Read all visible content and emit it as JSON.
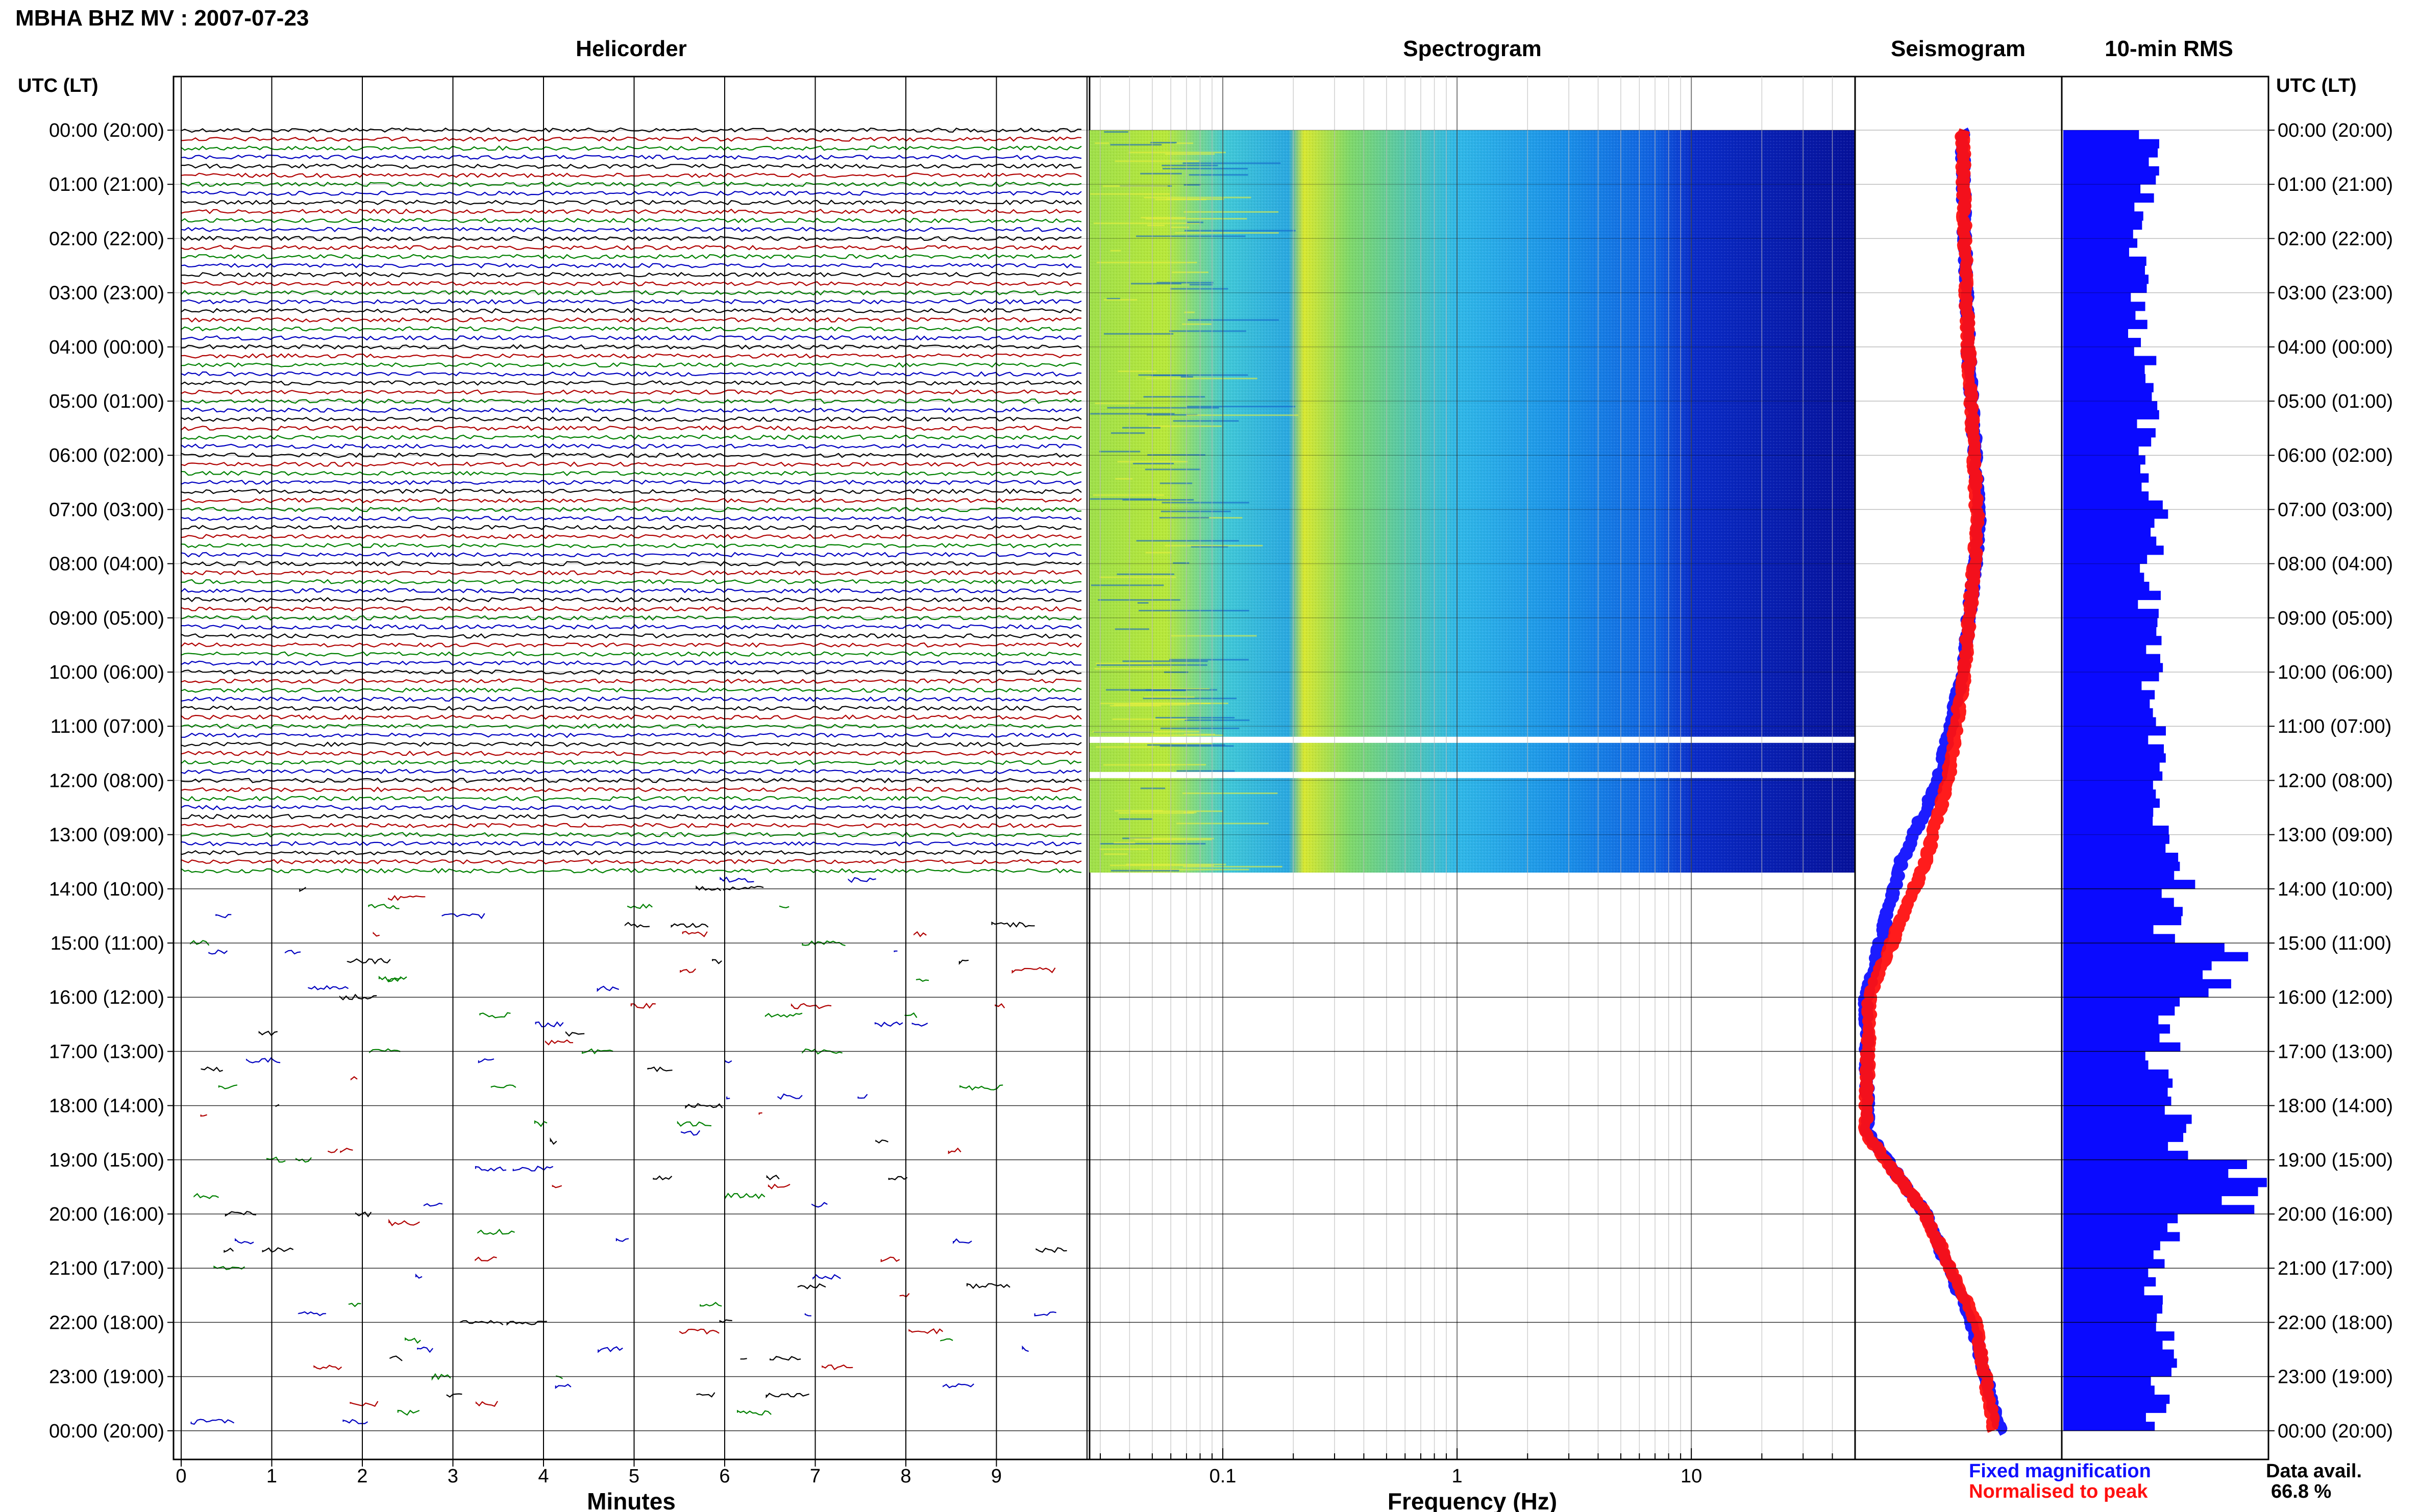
{
  "header": {
    "station_title": "MBHA BHZ MV : 2007-07-23"
  },
  "panels": {
    "helicorder": "Helicorder",
    "spectrogram": "Spectrogram",
    "seismogram": "Seismogram",
    "rms": "10-min RMS"
  },
  "axis": {
    "left_time_label": "UTC (LT)",
    "right_time_label": "UTC (LT)",
    "minutes_label": "Minutes",
    "frequency_label": "Frequency (Hz)"
  },
  "legend": {
    "fixed": "Fixed magnification",
    "normalised": "Normalised to peak",
    "fixed_color": "#1010ff",
    "normalised_color": "#ff1010"
  },
  "data_avail": {
    "label": "Data avail.",
    "value": "66.8 %"
  },
  "chart_data": {
    "type": "heatmap",
    "time_ticks": [
      "00:00 (20:00)",
      "01:00 (21:00)",
      "02:00 (22:00)",
      "03:00 (23:00)",
      "04:00 (00:00)",
      "05:00 (01:00)",
      "06:00 (02:00)",
      "07:00 (03:00)",
      "08:00 (04:00)",
      "09:00 (05:00)",
      "10:00 (06:00)",
      "11:00 (07:00)",
      "12:00 (08:00)",
      "13:00 (09:00)",
      "14:00 (10:00)",
      "15:00 (11:00)",
      "16:00 (12:00)",
      "17:00 (13:00)",
      "18:00 (14:00)",
      "19:00 (15:00)",
      "20:00 (16:00)",
      "21:00 (17:00)",
      "22:00 (18:00)",
      "23:00 (19:00)",
      "00:00 (20:00)"
    ],
    "minutes_ticks": [
      "0",
      "1",
      "2",
      "3",
      "4",
      "5",
      "6",
      "7",
      "8",
      "9"
    ],
    "frequency_ticks": [
      "0.1",
      "1",
      "10"
    ],
    "frequency_range_hz": [
      0.027,
      50
    ],
    "helicorder_colors": [
      "#000000",
      "#b00000",
      "#008000",
      "#0000c0"
    ],
    "continuous_data_until_hour": 13.7,
    "spectrogram_gaps_hours": [
      11.25,
      11.9
    ],
    "rms_hourly": [
      {
        "hour": 0,
        "value": 0.42
      },
      {
        "hour": 1,
        "value": 0.4
      },
      {
        "hour": 2,
        "value": 0.38
      },
      {
        "hour": 3,
        "value": 0.37
      },
      {
        "hour": 4,
        "value": 0.4
      },
      {
        "hour": 5,
        "value": 0.41
      },
      {
        "hour": 6,
        "value": 0.44
      },
      {
        "hour": 7,
        "value": 0.48
      },
      {
        "hour": 8,
        "value": 0.42
      },
      {
        "hour": 9,
        "value": 0.43
      },
      {
        "hour": 10,
        "value": 0.41
      },
      {
        "hour": 11,
        "value": 0.44
      },
      {
        "hour": 12,
        "value": 0.46
      },
      {
        "hour": 13,
        "value": 0.58
      },
      {
        "hour": 14,
        "value": 0.52
      },
      {
        "hour": 15,
        "value": 0.8
      },
      {
        "hour": 16,
        "value": 0.5
      },
      {
        "hour": 17,
        "value": 0.47
      },
      {
        "hour": 18,
        "value": 0.55
      },
      {
        "hour": 19,
        "value": 0.9
      },
      {
        "hour": 20,
        "value": 0.52
      },
      {
        "hour": 21,
        "value": 0.46
      },
      {
        "hour": 22,
        "value": 0.5
      },
      {
        "hour": 23,
        "value": 0.46
      }
    ],
    "seismogram_envelope": [
      {
        "hour": 0,
        "fixed": 0.55,
        "normalised": 0.55
      },
      {
        "hour": 2,
        "fixed": 0.56,
        "normalised": 0.56
      },
      {
        "hour": 4,
        "fixed": 0.58,
        "normalised": 0.58
      },
      {
        "hour": 6,
        "fixed": 0.62,
        "normalised": 0.61
      },
      {
        "hour": 7.3,
        "fixed": 0.64,
        "normalised": 0.63
      },
      {
        "hour": 10,
        "fixed": 0.55,
        "normalised": 0.56
      },
      {
        "hour": 12,
        "fixed": 0.42,
        "normalised": 0.47
      },
      {
        "hour": 13.5,
        "fixed": 0.22,
        "normalised": 0.35
      },
      {
        "hour": 16,
        "fixed": 0.03,
        "normalised": 0.05
      },
      {
        "hour": 18.5,
        "fixed": 0.04,
        "normalised": 0.03
      },
      {
        "hour": 20,
        "fixed": 0.35,
        "normalised": 0.35
      },
      {
        "hour": 22,
        "fixed": 0.6,
        "normalised": 0.62
      },
      {
        "hour": 24,
        "fixed": 0.75,
        "normalised": 0.72
      }
    ]
  }
}
